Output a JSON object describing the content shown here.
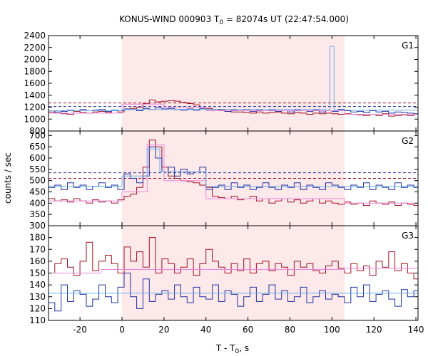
{
  "title": {
    "prefix": "KONUS-WIND 000903 T",
    "sub": "0",
    "suffix": " = 82074s UT (22:47:54.000)"
  },
  "axes": {
    "xlabel_prefix": "T - T",
    "xlabel_sub": "0",
    "xlabel_suffix": ", s",
    "ylabel": "counts / sec"
  },
  "chart_data": {
    "type": "line",
    "shared_x": {
      "range": [
        -35,
        141
      ],
      "ticks": [
        -20,
        0,
        20,
        40,
        60,
        80,
        100,
        120,
        140
      ],
      "tick_labels": [
        "-20",
        "0",
        "20",
        "40",
        "60",
        "80",
        "100",
        "120",
        "140"
      ]
    },
    "highlight_interval": [
      0,
      106
    ],
    "highlight_color": "#fde8ea",
    "panels": [
      {
        "label": "G1",
        "ylim": [
          800,
          2400
        ],
        "yticks": [
          800,
          1000,
          1200,
          1400,
          1600,
          1800,
          2000,
          2200,
          2400
        ],
        "ytick_labels": [
          "800",
          "1000",
          "1200",
          "1400",
          "1600",
          "1800",
          "2000",
          "2200",
          "2400"
        ],
        "hlines": [
          {
            "y": 1270,
            "color": "#a01020"
          },
          {
            "y": 1210,
            "color": "#2030a0"
          }
        ],
        "series": [
          {
            "color": "#a01020",
            "x": [
              -35,
              -32,
              -29,
              -26,
              -23,
              -20,
              -17,
              -14,
              -11,
              -8,
              -5,
              -2,
              1,
              4,
              7,
              10,
              13,
              16,
              19,
              22,
              25,
              28,
              31,
              34,
              37,
              40,
              43,
              46,
              49,
              52,
              55,
              58,
              61,
              64,
              67,
              70,
              73,
              76,
              79,
              82,
              85,
              88,
              91,
              94,
              97,
              100,
              103,
              106,
              109,
              112,
              115,
              118,
              121,
              124,
              127,
              130,
              133,
              136,
              139
            ],
            "y": [
              1120,
              1100,
              1090,
              1080,
              1130,
              1110,
              1100,
              1120,
              1130,
              1110,
              1140,
              1120,
              1160,
              1180,
              1200,
              1260,
              1320,
              1290,
              1300,
              1310,
              1300,
              1280,
              1260,
              1240,
              1200,
              1180,
              1160,
              1150,
              1130,
              1120,
              1120,
              1110,
              1100,
              1120,
              1100,
              1110,
              1120,
              1100,
              1090,
              1110,
              1100,
              1080,
              1100,
              1090,
              1100,
              1090,
              1080,
              1090,
              1080,
              1070,
              1060,
              1080,
              1060,
              1090,
              1050,
              1060,
              1070,
              1060,
              1080
            ]
          },
          {
            "color": "#2030a0",
            "x": [
              -35,
              -32,
              -29,
              -26,
              -23,
              -20,
              -17,
              -14,
              -11,
              -8,
              -5,
              -2,
              1,
              4,
              7,
              10,
              13,
              16,
              19,
              22,
              25,
              28,
              31,
              34,
              37,
              40,
              43,
              46,
              49,
              52,
              55,
              58,
              61,
              64,
              67,
              70,
              73,
              76,
              79,
              82,
              85,
              88,
              91,
              94,
              97,
              100,
              103,
              106,
              109,
              112,
              115,
              118,
              121,
              124,
              127,
              130,
              133,
              136,
              139
            ],
            "y": [
              1140,
              1120,
              1130,
              1150,
              1140,
              1160,
              1140,
              1150,
              1160,
              1130,
              1150,
              1140,
              1170,
              1160,
              1140,
              1180,
              1160,
              1190,
              1170,
              1180,
              1160,
              1150,
              1170,
              1150,
              1180,
              1160,
              1140,
              1160,
              1130,
              1150,
              1140,
              1160,
              1130,
              1150,
              1140,
              1150,
              1130,
              1140,
              1120,
              1150,
              1140,
              1130,
              1150,
              1120,
              1140,
              1130,
              1160,
              1140,
              1120,
              1130,
              1110,
              1140,
              1120,
              1130,
              1100,
              1120,
              1110,
              1100,
              1090
            ]
          },
          {
            "color": "#ee88dd",
            "x": [
              -35,
              0,
              0,
              20,
              20,
              40,
              40,
              106,
              106,
              141
            ],
            "y": [
              1100,
              1100,
              1250,
              1250,
              1200,
              1200,
              1140,
              1140,
              1080,
              1080
            ]
          },
          {
            "color": "#6ab0e8",
            "x": [
              -35,
              0,
              0,
              97,
              97,
              99,
              99,
              101,
              101,
              141
            ],
            "y": [
              1140,
              1140,
              1160,
              1160,
              1150,
              1150,
              2220,
              2220,
              1150,
              1150
            ]
          }
        ]
      },
      {
        "label": "G2",
        "ylim": [
          300,
          720
        ],
        "yticks": [
          300,
          350,
          400,
          450,
          500,
          550,
          600,
          650,
          700
        ],
        "ytick_labels": [
          "300",
          "350",
          "400",
          "450",
          "500",
          "550",
          "600",
          "650",
          "700"
        ],
        "hlines": [
          {
            "y": 535,
            "color": "#2030a0"
          },
          {
            "y": 510,
            "color": "#a01020"
          }
        ],
        "series": [
          {
            "color": "#a01020",
            "x": [
              -35,
              -32,
              -29,
              -26,
              -23,
              -20,
              -17,
              -14,
              -11,
              -8,
              -5,
              -2,
              1,
              4,
              7,
              10,
              13,
              16,
              19,
              22,
              25,
              28,
              31,
              34,
              37,
              40,
              43,
              46,
              49,
              52,
              55,
              58,
              61,
              64,
              67,
              70,
              73,
              76,
              79,
              82,
              85,
              88,
              91,
              94,
              97,
              100,
              103,
              106,
              109,
              112,
              115,
              118,
              121,
              124,
              127,
              130,
              133,
              136,
              139
            ],
            "y": [
              420,
              410,
              415,
              405,
              420,
              410,
              400,
              415,
              405,
              410,
              400,
              415,
              430,
              440,
              470,
              560,
              680,
              650,
              560,
              520,
              510,
              500,
              495,
              490,
              480,
              470,
              430,
              425,
              420,
              430,
              415,
              420,
              430,
              410,
              420,
              400,
              410,
              420,
              405,
              415,
              400,
              410,
              420,
              400,
              410,
              400,
              395,
              405,
              395,
              400,
              390,
              410,
              400,
              395,
              405,
              390,
              400,
              395,
              390
            ]
          },
          {
            "color": "#2030a0",
            "x": [
              -35,
              -32,
              -29,
              -26,
              -23,
              -20,
              -17,
              -14,
              -11,
              -8,
              -5,
              -2,
              1,
              4,
              7,
              10,
              13,
              16,
              19,
              22,
              25,
              28,
              31,
              34,
              37,
              40,
              43,
              46,
              49,
              52,
              55,
              58,
              61,
              64,
              67,
              70,
              73,
              76,
              79,
              82,
              85,
              88,
              91,
              94,
              97,
              100,
              103,
              106,
              109,
              112,
              115,
              118,
              121,
              124,
              127,
              130,
              133,
              136,
              139
            ],
            "y": [
              470,
              480,
              460,
              490,
              470,
              480,
              460,
              475,
              490,
              470,
              480,
              460,
              530,
              510,
              490,
              520,
              650,
              600,
              540,
              560,
              520,
              550,
              530,
              540,
              560,
              460,
              470,
              480,
              460,
              490,
              470,
              480,
              460,
              470,
              490,
              470,
              460,
              480,
              470,
              490,
              460,
              480,
              470,
              460,
              490,
              480,
              470,
              460,
              480,
              470,
              490,
              460,
              480,
              470,
              460,
              490,
              470,
              480,
              470
            ]
          },
          {
            "color": "#ee88dd",
            "x": [
              -35,
              0,
              0,
              12,
              12,
              20,
              20,
              40,
              40,
              106,
              106,
              141
            ],
            "y": [
              410,
              410,
              450,
              450,
              660,
              660,
              500,
              500,
              420,
              420,
              400,
              400
            ]
          },
          {
            "color": "#6ab0e8",
            "x": [
              -35,
              0,
              0,
              12,
              12,
              18,
              18,
              40,
              40,
              106,
              106,
              141
            ],
            "y": [
              475,
              475,
              520,
              520,
              640,
              640,
              540,
              540,
              475,
              475,
              475,
              475
            ]
          }
        ]
      },
      {
        "label": "G3",
        "ylim": [
          110,
          190
        ],
        "yticks": [
          110,
          120,
          130,
          140,
          150,
          160,
          170,
          180
        ],
        "ytick_labels": [
          "110",
          "120",
          "130",
          "140",
          "150",
          "160",
          "170",
          "180"
        ],
        "hlines": [],
        "series": [
          {
            "color": "#a01020",
            "x": [
              -35,
              -32,
              -29,
              -26,
              -23,
              -20,
              -17,
              -14,
              -11,
              -8,
              -5,
              -2,
              1,
              4,
              7,
              10,
              13,
              16,
              19,
              22,
              25,
              28,
              31,
              34,
              37,
              40,
              43,
              46,
              49,
              52,
              55,
              58,
              61,
              64,
              67,
              70,
              73,
              76,
              79,
              82,
              85,
              88,
              91,
              94,
              97,
              100,
              103,
              106,
              109,
              112,
              115,
              118,
              121,
              124,
              127,
              130,
              133,
              136,
              139
            ],
            "y": [
              150,
              158,
              162,
              155,
              148,
              160,
              176,
              152,
              160,
              165,
              158,
              150,
              172,
              160,
              168,
              155,
              180,
              150,
              162,
              158,
              150,
              155,
              162,
              148,
              158,
              170,
              160,
              155,
              150,
              158,
              152,
              162,
              150,
              158,
              160,
              152,
              158,
              155,
              148,
              160,
              155,
              158,
              152,
              150,
              156,
              160,
              154,
              150,
              158,
              152,
              156,
              148,
              160,
              155,
              168,
              152,
              158,
              150,
              145
            ]
          },
          {
            "color": "#2030a0",
            "x": [
              -35,
              -32,
              -29,
              -26,
              -23,
              -20,
              -17,
              -14,
              -11,
              -8,
              -5,
              -2,
              1,
              4,
              7,
              10,
              13,
              16,
              19,
              22,
              25,
              28,
              31,
              34,
              37,
              40,
              43,
              46,
              49,
              52,
              55,
              58,
              61,
              64,
              67,
              70,
              73,
              76,
              79,
              82,
              85,
              88,
              91,
              94,
              97,
              100,
              103,
              106,
              109,
              112,
              115,
              118,
              121,
              124,
              127,
              130,
              133,
              136,
              139
            ],
            "y": [
              125,
              118,
              140,
              126,
              135,
              132,
              122,
              128,
              140,
              130,
              125,
              138,
              150,
              130,
              120,
              145,
              126,
              132,
              135,
              128,
              140,
              130,
              125,
              138,
              130,
              128,
              140,
              126,
              135,
              132,
              122,
              130,
              138,
              126,
              132,
              140,
              128,
              135,
              126,
              130,
              138,
              125,
              130,
              135,
              128,
              132,
              130,
              125,
              138,
              130,
              140,
              126,
              132,
              135,
              128,
              122,
              136,
              130,
              135
            ]
          },
          {
            "color": "#ee88dd",
            "x": [
              -35,
              -10,
              -10,
              106,
              106,
              141
            ],
            "y": [
              150,
              150,
              153,
              153,
              154,
              154
            ]
          },
          {
            "color": "#6ab0e8",
            "x": [
              -35,
              141
            ],
            "y": [
              133,
              133
            ]
          }
        ]
      }
    ]
  }
}
